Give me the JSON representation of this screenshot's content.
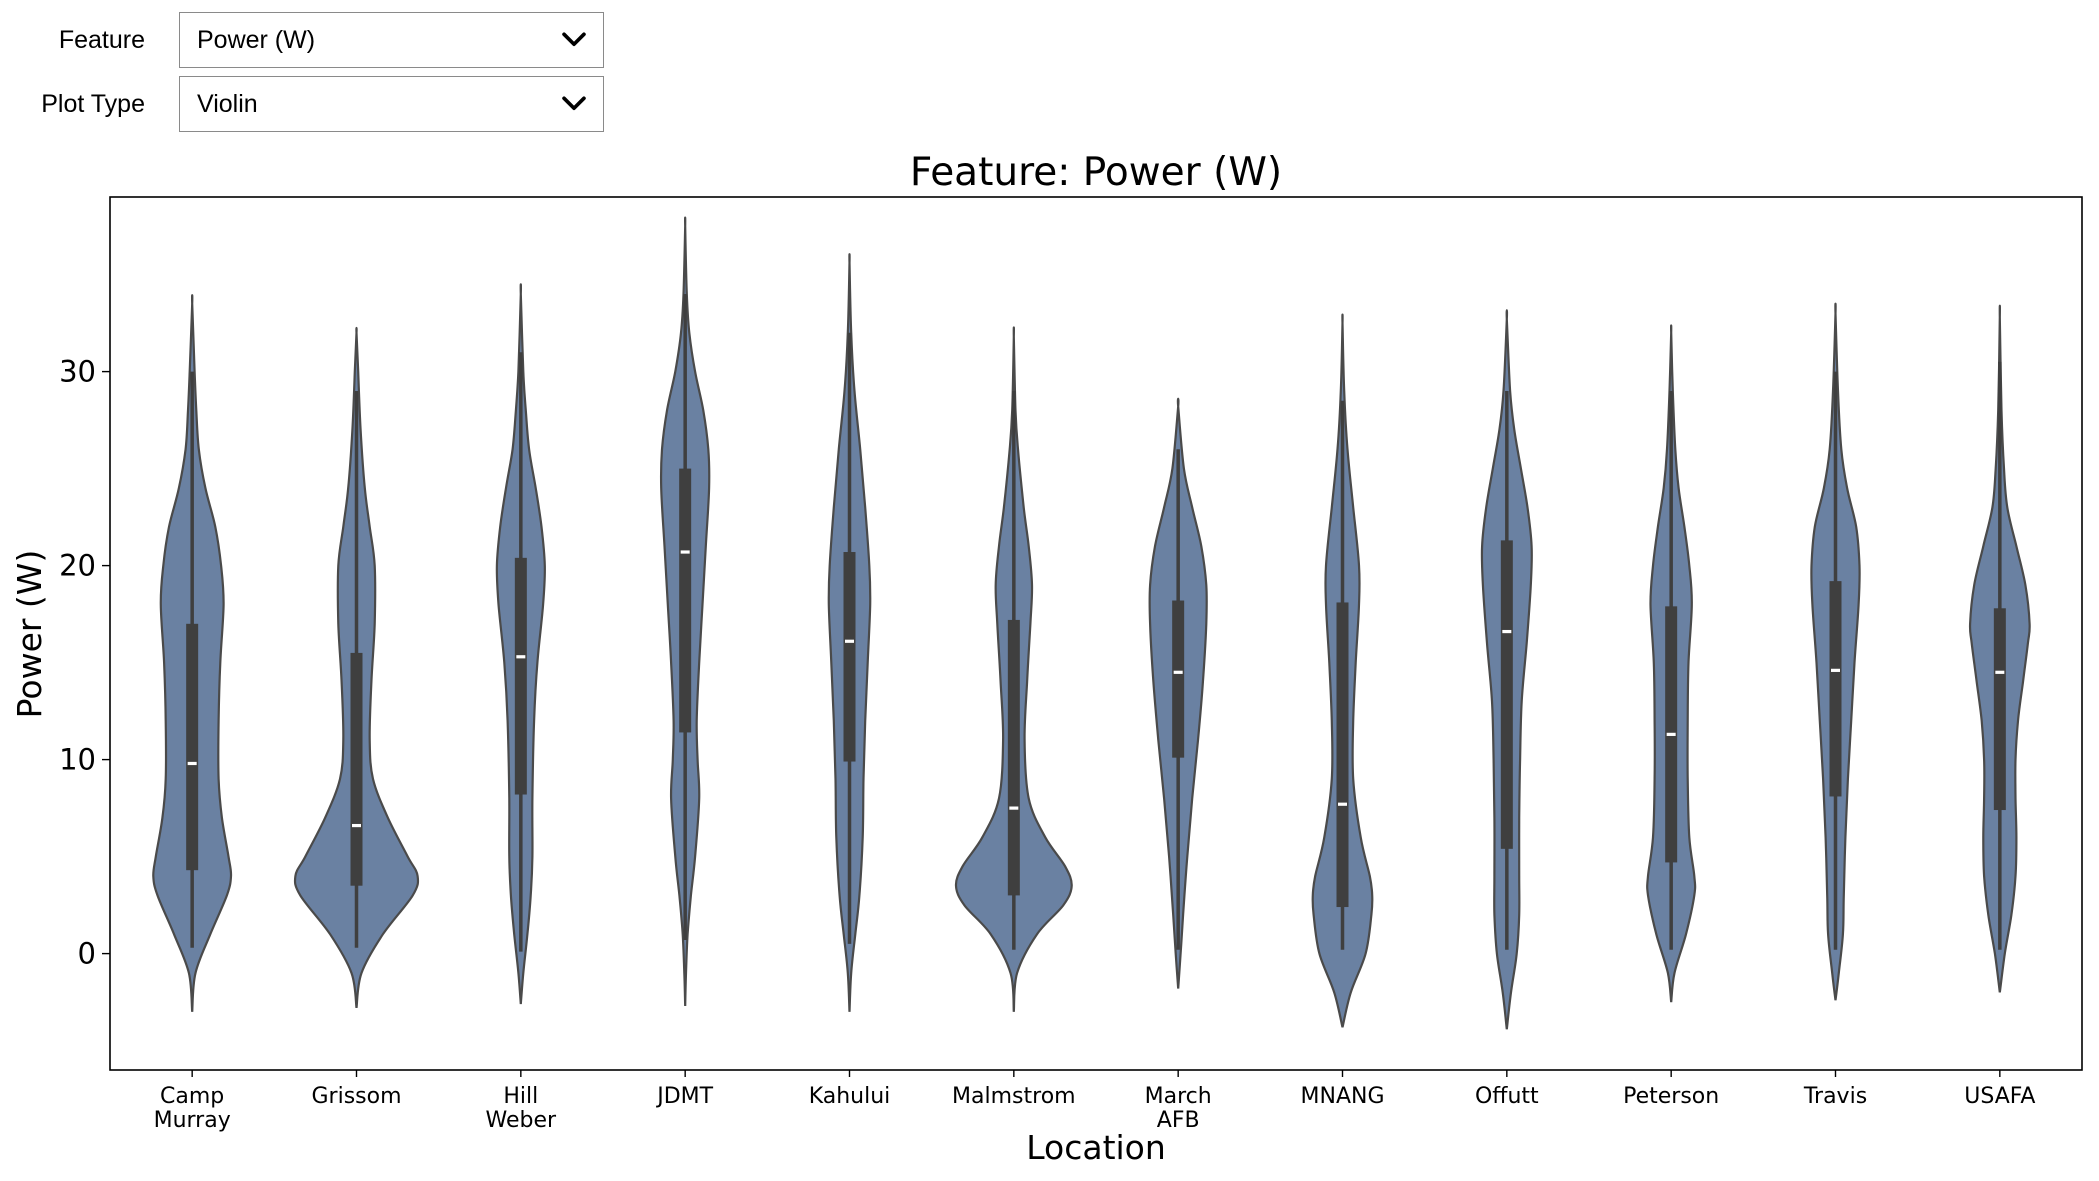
{
  "controls": {
    "feature": {
      "label": "Feature",
      "value": "Power (W)"
    },
    "plot_type": {
      "label": "Plot Type",
      "value": "Violin"
    }
  },
  "chart_data": {
    "type": "violin",
    "title": "Feature: Power (W)",
    "xlabel": "Location",
    "ylabel": "Power (W)",
    "ylim": [
      -6,
      39
    ],
    "yticks": [
      0,
      10,
      20,
      30
    ],
    "grid": false,
    "legend": "none",
    "color": "#6a81a2",
    "box_color": "#3f3f3f",
    "categories": [
      "Camp\nMurray",
      "Grissom",
      "Hill\nWeber",
      "JDMT",
      "Kahului",
      "Malmstrom",
      "March\nAFB",
      "MNANG",
      "Offutt",
      "Peterson",
      "Travis",
      "USAFA"
    ],
    "violins": [
      {
        "category": "Camp\nMurray",
        "min": -3,
        "max": 33.5,
        "whisker_low": 0.3,
        "whisker_high": 30,
        "q1": 4.3,
        "median": 9.8,
        "q3": 17.0,
        "density": [
          [
            -3,
            0
          ],
          [
            -1,
            0.04
          ],
          [
            1,
            0.22
          ],
          [
            3,
            0.42
          ],
          [
            4,
            0.47
          ],
          [
            5,
            0.44
          ],
          [
            7,
            0.36
          ],
          [
            9,
            0.32
          ],
          [
            12,
            0.32
          ],
          [
            15,
            0.34
          ],
          [
            18,
            0.38
          ],
          [
            20,
            0.35
          ],
          [
            22,
            0.28
          ],
          [
            24,
            0.16
          ],
          [
            26,
            0.08
          ],
          [
            28,
            0.05
          ],
          [
            30,
            0.03
          ],
          [
            33.5,
            0
          ]
        ]
      },
      {
        "category": "Grissom",
        "min": -2.8,
        "max": 32,
        "whisker_low": 0.3,
        "whisker_high": 29,
        "q1": 3.5,
        "median": 6.6,
        "q3": 15.5,
        "density": [
          [
            -2.8,
            0
          ],
          [
            -1,
            0.06
          ],
          [
            1,
            0.32
          ],
          [
            3,
            0.68
          ],
          [
            4,
            0.74
          ],
          [
            5,
            0.62
          ],
          [
            7,
            0.38
          ],
          [
            9,
            0.2
          ],
          [
            11,
            0.16
          ],
          [
            14,
            0.18
          ],
          [
            17,
            0.22
          ],
          [
            20,
            0.22
          ],
          [
            22,
            0.16
          ],
          [
            24,
            0.1
          ],
          [
            27,
            0.05
          ],
          [
            30,
            0.02
          ],
          [
            32,
            0
          ]
        ]
      },
      {
        "category": "Hill\nWeber",
        "min": -2.6,
        "max": 34,
        "whisker_low": 0.1,
        "whisker_high": 31,
        "q1": 8.2,
        "median": 15.3,
        "q3": 20.4,
        "density": [
          [
            -2.6,
            0
          ],
          [
            -1,
            0.03
          ],
          [
            1,
            0.08
          ],
          [
            3,
            0.12
          ],
          [
            5,
            0.14
          ],
          [
            8,
            0.14
          ],
          [
            12,
            0.16
          ],
          [
            15,
            0.2
          ],
          [
            18,
            0.27
          ],
          [
            20,
            0.29
          ],
          [
            22,
            0.25
          ],
          [
            24,
            0.18
          ],
          [
            26,
            0.1
          ],
          [
            28,
            0.06
          ],
          [
            30,
            0.03
          ],
          [
            34,
            0
          ]
        ]
      },
      {
        "category": "JDMT",
        "min": -2.7,
        "max": 37.5,
        "whisker_low": 0.7,
        "whisker_high": 34,
        "q1": 11.4,
        "median": 20.7,
        "q3": 25.0,
        "density": [
          [
            -2.7,
            0
          ],
          [
            -1,
            0.01
          ],
          [
            1,
            0.03
          ],
          [
            3,
            0.07
          ],
          [
            5,
            0.12
          ],
          [
            8,
            0.17
          ],
          [
            10,
            0.15
          ],
          [
            12,
            0.14
          ],
          [
            15,
            0.17
          ],
          [
            18,
            0.21
          ],
          [
            21,
            0.25
          ],
          [
            24,
            0.29
          ],
          [
            26,
            0.28
          ],
          [
            28,
            0.22
          ],
          [
            30,
            0.12
          ],
          [
            32,
            0.05
          ],
          [
            34,
            0.02
          ],
          [
            37.5,
            0
          ]
        ]
      },
      {
        "category": "Kahului",
        "min": -3,
        "max": 35.6,
        "whisker_low": 0.5,
        "whisker_high": 32,
        "q1": 9.9,
        "median": 16.1,
        "q3": 20.7,
        "density": [
          [
            -3,
            0
          ],
          [
            -1,
            0.02
          ],
          [
            1,
            0.07
          ],
          [
            3,
            0.12
          ],
          [
            6,
            0.16
          ],
          [
            9,
            0.17
          ],
          [
            12,
            0.19
          ],
          [
            15,
            0.22
          ],
          [
            18,
            0.25
          ],
          [
            20,
            0.24
          ],
          [
            23,
            0.19
          ],
          [
            26,
            0.13
          ],
          [
            29,
            0.06
          ],
          [
            32,
            0.02
          ],
          [
            35.6,
            0
          ]
        ]
      },
      {
        "category": "Malmstrom",
        "min": -3,
        "max": 31.8,
        "whisker_low": 0.2,
        "whisker_high": 29,
        "q1": 3.0,
        "median": 7.5,
        "q3": 17.2,
        "density": [
          [
            -3,
            0
          ],
          [
            -1,
            0.04
          ],
          [
            1,
            0.28
          ],
          [
            2.5,
            0.6
          ],
          [
            3.5,
            0.7
          ],
          [
            4.5,
            0.62
          ],
          [
            6,
            0.38
          ],
          [
            8,
            0.18
          ],
          [
            11,
            0.13
          ],
          [
            14,
            0.16
          ],
          [
            17,
            0.2
          ],
          [
            19,
            0.22
          ],
          [
            21,
            0.18
          ],
          [
            23,
            0.12
          ],
          [
            26,
            0.05
          ],
          [
            28,
            0.02
          ],
          [
            31.8,
            0
          ]
        ]
      },
      {
        "category": "March\nAFB",
        "min": -1.8,
        "max": 28.2,
        "whisker_low": 0.2,
        "whisker_high": 26,
        "q1": 10.1,
        "median": 14.5,
        "q3": 18.2,
        "density": [
          [
            -1.8,
            0
          ],
          [
            0,
            0.03
          ],
          [
            2,
            0.06
          ],
          [
            5,
            0.11
          ],
          [
            8,
            0.17
          ],
          [
            11,
            0.24
          ],
          [
            14,
            0.3
          ],
          [
            17,
            0.34
          ],
          [
            19,
            0.34
          ],
          [
            21,
            0.28
          ],
          [
            23,
            0.17
          ],
          [
            25,
            0.07
          ],
          [
            28.2,
            0
          ]
        ]
      },
      {
        "category": "MNANG",
        "min": -3.8,
        "max": 32.5,
        "whisker_low": 0.2,
        "whisker_high": 28.5,
        "q1": 2.4,
        "median": 7.7,
        "q3": 18.1,
        "density": [
          [
            -3.8,
            0
          ],
          [
            -2,
            0.1
          ],
          [
            0,
            0.28
          ],
          [
            2,
            0.35
          ],
          [
            3,
            0.36
          ],
          [
            4,
            0.33
          ],
          [
            6,
            0.22
          ],
          [
            9,
            0.13
          ],
          [
            12,
            0.13
          ],
          [
            15,
            0.16
          ],
          [
            18,
            0.2
          ],
          [
            20,
            0.2
          ],
          [
            23,
            0.13
          ],
          [
            26,
            0.06
          ],
          [
            29,
            0.02
          ],
          [
            32.5,
            0
          ]
        ]
      },
      {
        "category": "Offutt",
        "min": -3.9,
        "max": 32.7,
        "whisker_low": 0.2,
        "whisker_high": 29,
        "q1": 5.4,
        "median": 16.6,
        "q3": 21.3,
        "density": [
          [
            -3.9,
            0
          ],
          [
            -2,
            0.05
          ],
          [
            0,
            0.12
          ],
          [
            2,
            0.15
          ],
          [
            4,
            0.15
          ],
          [
            7,
            0.15
          ],
          [
            10,
            0.16
          ],
          [
            13,
            0.18
          ],
          [
            16,
            0.24
          ],
          [
            19,
            0.29
          ],
          [
            21,
            0.3
          ],
          [
            23,
            0.25
          ],
          [
            25,
            0.17
          ],
          [
            27,
            0.09
          ],
          [
            29,
            0.04
          ],
          [
            32.7,
            0
          ]
        ]
      },
      {
        "category": "Peterson",
        "min": -2.5,
        "max": 32,
        "whisker_low": 0.2,
        "whisker_high": 29,
        "q1": 4.7,
        "median": 11.3,
        "q3": 17.9,
        "density": [
          [
            -2.5,
            0
          ],
          [
            -1,
            0.04
          ],
          [
            1,
            0.18
          ],
          [
            3,
            0.28
          ],
          [
            4,
            0.28
          ],
          [
            6,
            0.22
          ],
          [
            9,
            0.2
          ],
          [
            12,
            0.2
          ],
          [
            15,
            0.21
          ],
          [
            18,
            0.25
          ],
          [
            20,
            0.22
          ],
          [
            22,
            0.16
          ],
          [
            24,
            0.09
          ],
          [
            26,
            0.05
          ],
          [
            29,
            0.02
          ],
          [
            32,
            0
          ]
        ]
      },
      {
        "category": "Travis",
        "min": -2.4,
        "max": 33,
        "whisker_low": 0.2,
        "whisker_high": 30,
        "q1": 8.1,
        "median": 14.6,
        "q3": 19.2,
        "density": [
          [
            -2.4,
            0
          ],
          [
            -1,
            0.04
          ],
          [
            1,
            0.09
          ],
          [
            3,
            0.1
          ],
          [
            6,
            0.12
          ],
          [
            9,
            0.15
          ],
          [
            12,
            0.19
          ],
          [
            15,
            0.23
          ],
          [
            18,
            0.28
          ],
          [
            20,
            0.29
          ],
          [
            22,
            0.25
          ],
          [
            24,
            0.14
          ],
          [
            26,
            0.07
          ],
          [
            29,
            0.03
          ],
          [
            33,
            0
          ]
        ]
      },
      {
        "category": "USAFA",
        "min": -2,
        "max": 32.8,
        "whisker_low": 0.2,
        "whisker_high": 30.5,
        "q1": 7.4,
        "median": 14.5,
        "q3": 17.8,
        "density": [
          [
            -2,
            0
          ],
          [
            0,
            0.06
          ],
          [
            2,
            0.14
          ],
          [
            4,
            0.19
          ],
          [
            6,
            0.2
          ],
          [
            8,
            0.19
          ],
          [
            10,
            0.19
          ],
          [
            12,
            0.22
          ],
          [
            14,
            0.28
          ],
          [
            16,
            0.34
          ],
          [
            17,
            0.36
          ],
          [
            19,
            0.31
          ],
          [
            21,
            0.2
          ],
          [
            23,
            0.09
          ],
          [
            25,
            0.05
          ],
          [
            28,
            0.02
          ],
          [
            32.8,
            0
          ]
        ]
      }
    ]
  }
}
